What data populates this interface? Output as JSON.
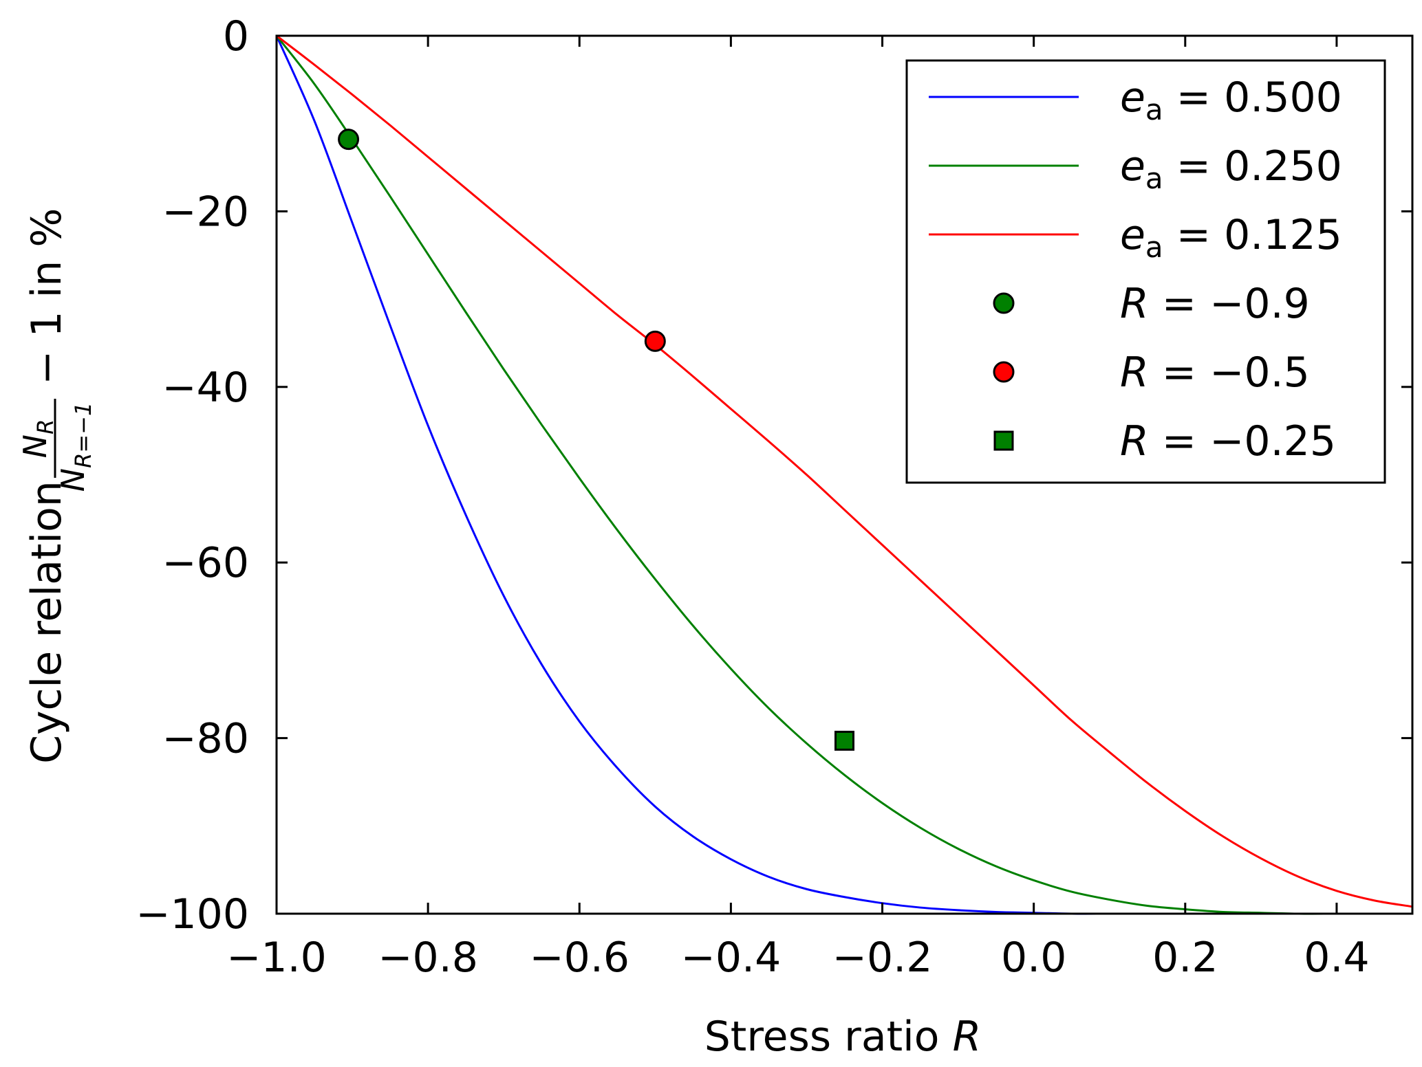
{
  "chart_data": {
    "type": "line",
    "xlabel": "Stress ratio ",
    "xlabel_var": "R",
    "ylabel": {
      "prefix": "Cycle relation",
      "numerator": "N",
      "numerator_sub": "R",
      "denominator": "N",
      "denominator_sub": "R=−1",
      "suffix": "− 1 in %"
    },
    "xlim": [
      -1.0,
      0.5
    ],
    "ylim": [
      -100,
      0
    ],
    "x_ticks": [
      -1.0,
      -0.8,
      -0.6,
      -0.4,
      -0.2,
      0.0,
      0.2,
      0.4
    ],
    "x_tick_labels": [
      "−1.0",
      "−0.8",
      "−0.6",
      "−0.4",
      "−0.2",
      "0.0",
      "0.2",
      "0.4"
    ],
    "y_ticks": [
      0,
      -20,
      -40,
      -60,
      -80,
      -100
    ],
    "y_tick_labels": [
      "0",
      "−20",
      "−40",
      "−60",
      "−80",
      "−100"
    ],
    "series": [
      {
        "name": "e_a = 0.500",
        "legend_var": "e",
        "legend_sub": "a",
        "legend_rest": " = 0.500",
        "color": "#0000ff",
        "x": [
          -1.0,
          -0.95,
          -0.9,
          -0.85,
          -0.8,
          -0.75,
          -0.7,
          -0.65,
          -0.6,
          -0.55,
          -0.5,
          -0.45,
          -0.4,
          -0.35,
          -0.3,
          -0.25,
          -0.2,
          -0.15,
          -0.1,
          -0.05,
          0.0,
          0.05,
          0.1,
          0.15,
          0.2,
          0.25,
          0.3,
          0.35,
          0.4,
          0.45,
          0.5
        ],
        "y": [
          0,
          -9.7,
          -21.3,
          -33.0,
          -44.4,
          -54.6,
          -63.8,
          -71.6,
          -78.1,
          -83.4,
          -87.8,
          -91.2,
          -93.8,
          -95.8,
          -97.2,
          -98.1,
          -98.8,
          -99.3,
          -99.6,
          -99.8,
          -99.9,
          -100,
          -100,
          -100,
          -100,
          -100,
          -100,
          -100,
          -100,
          -100,
          -100
        ]
      },
      {
        "name": "e_a = 0.250",
        "legend_var": "e",
        "legend_sub": "a",
        "legend_rest": " = 0.250",
        "color": "#008000",
        "x": [
          -1.0,
          -0.95,
          -0.9,
          -0.85,
          -0.8,
          -0.75,
          -0.7,
          -0.65,
          -0.6,
          -0.55,
          -0.5,
          -0.45,
          -0.4,
          -0.35,
          -0.3,
          -0.25,
          -0.2,
          -0.15,
          -0.1,
          -0.05,
          0.0,
          0.05,
          0.1,
          0.15,
          0.2,
          0.25,
          0.3,
          0.35,
          0.4,
          0.45,
          0.5
        ],
        "y": [
          0,
          -5.5,
          -11.8,
          -18.3,
          -24.9,
          -31.5,
          -38.0,
          -44.3,
          -50.4,
          -56.3,
          -61.9,
          -67.2,
          -72.1,
          -76.6,
          -80.6,
          -84.2,
          -87.4,
          -90.2,
          -92.6,
          -94.6,
          -96.2,
          -97.5,
          -98.4,
          -99.1,
          -99.5,
          -99.8,
          -99.9,
          -100,
          -100,
          -100,
          -100
        ]
      },
      {
        "name": "e_a = 0.125",
        "legend_var": "e",
        "legend_sub": "a",
        "legend_rest": " = 0.125",
        "color": "#ff0000",
        "x": [
          -1.0,
          -0.95,
          -0.9,
          -0.85,
          -0.8,
          -0.75,
          -0.7,
          -0.65,
          -0.6,
          -0.55,
          -0.5,
          -0.45,
          -0.4,
          -0.35,
          -0.3,
          -0.25,
          -0.2,
          -0.15,
          -0.1,
          -0.05,
          0.0,
          0.05,
          0.1,
          0.15,
          0.2,
          0.25,
          0.3,
          0.35,
          0.4,
          0.45,
          0.5
        ],
        "y": [
          0,
          -3.3,
          -6.7,
          -10.2,
          -13.8,
          -17.4,
          -21.0,
          -24.6,
          -28.2,
          -31.8,
          -35.2,
          -38.8,
          -42.5,
          -46.2,
          -50.0,
          -54.0,
          -58.0,
          -62.0,
          -66.0,
          -70.0,
          -74.0,
          -78.0,
          -81.6,
          -85.1,
          -88.3,
          -91.2,
          -93.7,
          -95.8,
          -97.4,
          -98.5,
          -99.2
        ]
      }
    ],
    "markers": [
      {
        "name": "R = −0.9",
        "legend_var": "R",
        "legend_rest": " = −0.9",
        "shape": "circle",
        "color": "#008000",
        "x": -0.905,
        "y": -11.8
      },
      {
        "name": "R = −0.5",
        "legend_var": "R",
        "legend_rest": " = −0.5",
        "shape": "circle",
        "color": "#ff0000",
        "x": -0.5,
        "y": -34.8
      },
      {
        "name": "R = −0.25",
        "legend_var": "R",
        "legend_rest": " = −0.25",
        "shape": "square",
        "color": "#008000",
        "x": -0.25,
        "y": -80.3
      }
    ],
    "legend_position": "top-right",
    "grid": false
  }
}
